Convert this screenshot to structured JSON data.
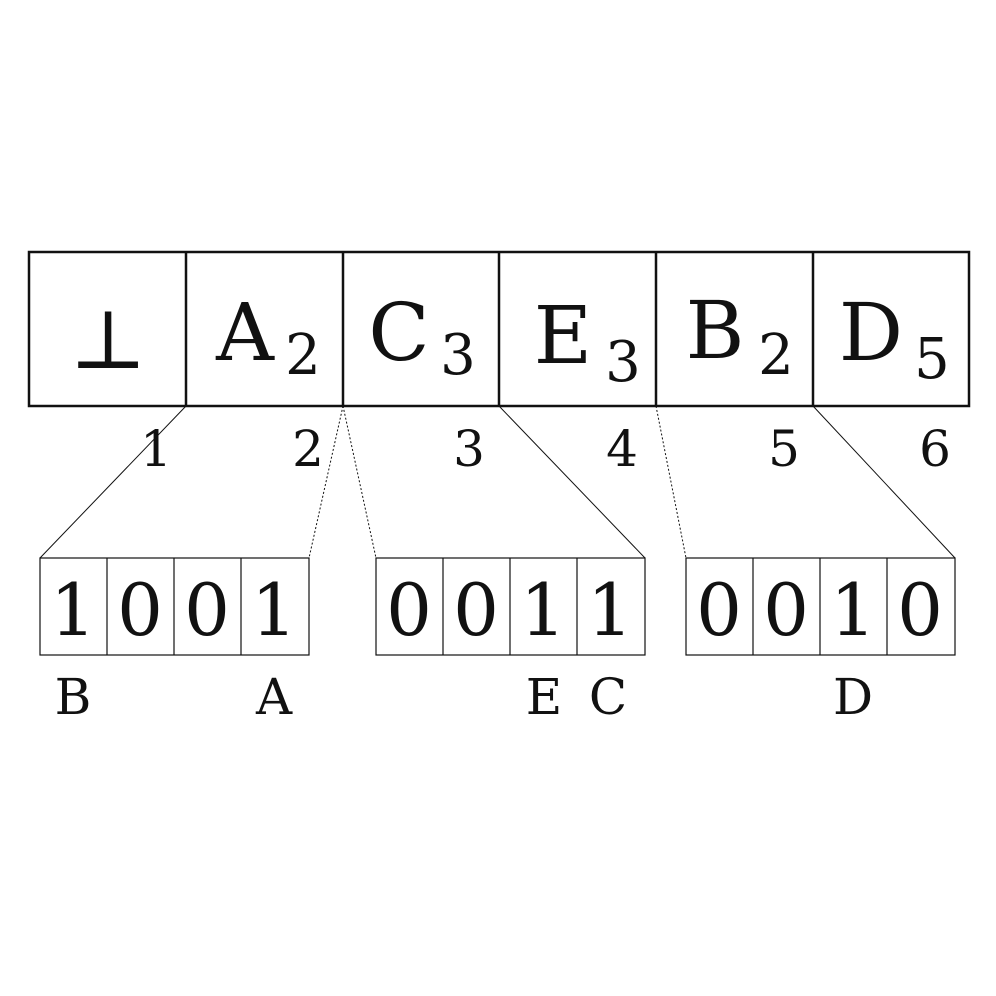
{
  "top_row": {
    "cells": [
      {
        "letter": "⊥",
        "subscript": ""
      },
      {
        "letter": "A",
        "subscript": "2"
      },
      {
        "letter": "C",
        "subscript": "3"
      },
      {
        "letter": "E",
        "subscript": "3"
      },
      {
        "letter": "B",
        "subscript": "2"
      },
      {
        "letter": "D",
        "subscript": "5"
      }
    ],
    "indices": [
      "1",
      "2",
      "3",
      "4",
      "5",
      "6"
    ]
  },
  "bit_groups": [
    {
      "bits": [
        "1",
        "0",
        "0",
        "1"
      ],
      "labels": [
        "B",
        "",
        "",
        "A"
      ]
    },
    {
      "bits": [
        "0",
        "0",
        "1",
        "1"
      ],
      "labels": [
        "",
        "",
        "E",
        "C"
      ]
    },
    {
      "bits": [
        "0",
        "0",
        "1",
        "0"
      ],
      "labels": [
        "",
        "",
        "D",
        ""
      ]
    }
  ],
  "colors": {
    "stroke": "#111111",
    "background": "#ffffff"
  }
}
